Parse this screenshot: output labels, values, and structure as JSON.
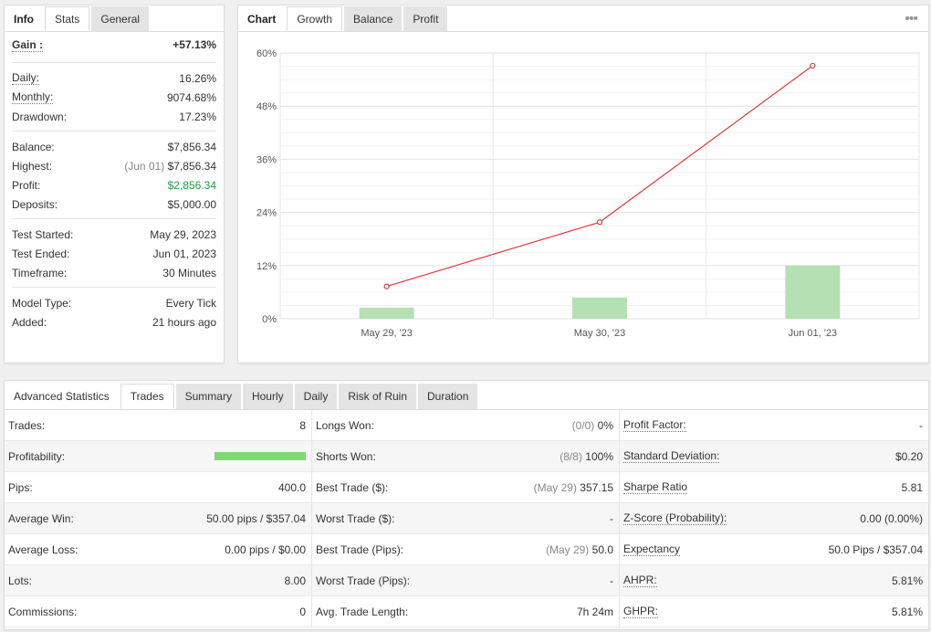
{
  "info_tabs": [
    "Info",
    "Stats",
    "General"
  ],
  "stats": {
    "gain": {
      "label": "Gain :",
      "value": "+57.13%"
    },
    "group1": [
      {
        "label": "Daily:",
        "value": "16.26%",
        "dotted": true
      },
      {
        "label": "Monthly:",
        "value": "9074.68%",
        "dotted": true
      },
      {
        "label": "Drawdown:",
        "value": "17.23%",
        "dotted": false
      }
    ],
    "group2": [
      {
        "label": "Balance:",
        "prefix": "",
        "value": "$7,856.34",
        "green": false
      },
      {
        "label": "Highest:",
        "prefix": "(Jun 01)",
        "value": "$7,856.34",
        "green": false
      },
      {
        "label": "Profit:",
        "prefix": "",
        "value": "$2,856.34",
        "green": true
      },
      {
        "label": "Deposits:",
        "prefix": "",
        "value": "$5,000.00",
        "green": false
      }
    ],
    "group3": [
      {
        "label": "Test Started:",
        "value": "May 29, 2023"
      },
      {
        "label": "Test Ended:",
        "value": "Jun 01, 2023"
      },
      {
        "label": "Timeframe:",
        "value": "30 Minutes"
      }
    ],
    "group4": [
      {
        "label": "Model Type:",
        "value": "Every Tick"
      },
      {
        "label": "Added:",
        "value": "21 hours ago"
      }
    ]
  },
  "chart_tabs": [
    "Chart",
    "Growth",
    "Balance",
    "Profit"
  ],
  "more_icon": "ellipsis-icon",
  "chart_data": {
    "type": "line+bar",
    "categories": [
      "May 29, '23",
      "May 30, '23",
      "Jun 01, '23"
    ],
    "ylim": [
      0,
      60
    ],
    "yticks": [
      "0%",
      "12%",
      "24%",
      "36%",
      "48%",
      "60%"
    ],
    "series": [
      {
        "type": "line",
        "color": "#e03b3b",
        "values": [
          7.3,
          21.8,
          57.13
        ]
      },
      {
        "type": "bar",
        "color": "#b5e0b4",
        "values": [
          2.5,
          4.8,
          12.0
        ]
      }
    ],
    "grid": true
  },
  "adv": {
    "tabs": [
      "Advanced Statistics",
      "Trades",
      "Summary",
      "Hourly",
      "Daily",
      "Risk of Ruin",
      "Duration"
    ],
    "active_tab": "Trades",
    "profitability_bar_fraction": 1.0,
    "columns": [
      [
        {
          "label": "Trades:",
          "prefix": "",
          "value": "8"
        },
        {
          "label": "Profitability:",
          "prefix": "",
          "value": "",
          "bar": true
        },
        {
          "label": "Pips:",
          "prefix": "",
          "value": "400.0"
        },
        {
          "label": "Average Win:",
          "prefix": "",
          "value": "50.00 pips / $357.04"
        },
        {
          "label": "Average Loss:",
          "prefix": "",
          "value": "0.00 pips / $0.00"
        },
        {
          "label": "Lots:",
          "prefix": "",
          "value": "8.00"
        },
        {
          "label": "Commissions:",
          "prefix": "",
          "value": "0"
        }
      ],
      [
        {
          "label": "Longs Won:",
          "prefix": "(0/0)",
          "value": "0%"
        },
        {
          "label": "Shorts Won:",
          "prefix": "(8/8)",
          "value": "100%"
        },
        {
          "label": "Best Trade ($):",
          "prefix": "(May 29)",
          "value": "357.15"
        },
        {
          "label": "Worst Trade ($):",
          "prefix": "",
          "value": "-"
        },
        {
          "label": "Best Trade (Pips):",
          "prefix": "(May 29)",
          "value": "50.0"
        },
        {
          "label": "Worst Trade (Pips):",
          "prefix": "",
          "value": "-"
        },
        {
          "label": "Avg. Trade Length:",
          "prefix": "",
          "value": "7h 24m"
        }
      ],
      [
        {
          "label": "Profit Factor:",
          "prefix": "",
          "value": "-",
          "dotted": true
        },
        {
          "label": "Standard Deviation:",
          "prefix": "",
          "value": "$0.20",
          "dotted": true
        },
        {
          "label": "Sharpe Ratio",
          "prefix": "",
          "value": "5.81",
          "dotted": true
        },
        {
          "label": "Z-Score (Probability):",
          "prefix": "",
          "value": "0.00 (0.00%)",
          "dotted": true
        },
        {
          "label": "Expectancy",
          "prefix": "",
          "value": "50.0 Pips / $357.04",
          "dotted": true
        },
        {
          "label": "AHPR:",
          "prefix": "",
          "value": "5.81%",
          "dotted": true
        },
        {
          "label": "GHPR:",
          "prefix": "",
          "value": "5.81%",
          "dotted": true
        }
      ]
    ]
  }
}
